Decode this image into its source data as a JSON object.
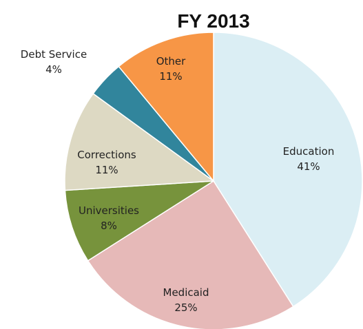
{
  "chart_data": {
    "type": "pie",
    "title": "FY 2013",
    "slices": [
      {
        "label": "Education",
        "value": 41,
        "value_text": "41%",
        "color": "#dbeef4"
      },
      {
        "label": "Medicaid",
        "value": 25,
        "value_text": "25%",
        "color": "#e6b9b8"
      },
      {
        "label": "Universities",
        "value": 8,
        "value_text": "8%",
        "color": "#77933c"
      },
      {
        "label": "Corrections",
        "value": 11,
        "value_text": "11%",
        "color": "#ddd9c3"
      },
      {
        "label": "Debt Service",
        "value": 4,
        "value_text": "4%",
        "color": "#31859c"
      },
      {
        "label": "Other",
        "value": 11,
        "value_text": "11%",
        "color": "#f79646"
      }
    ]
  }
}
